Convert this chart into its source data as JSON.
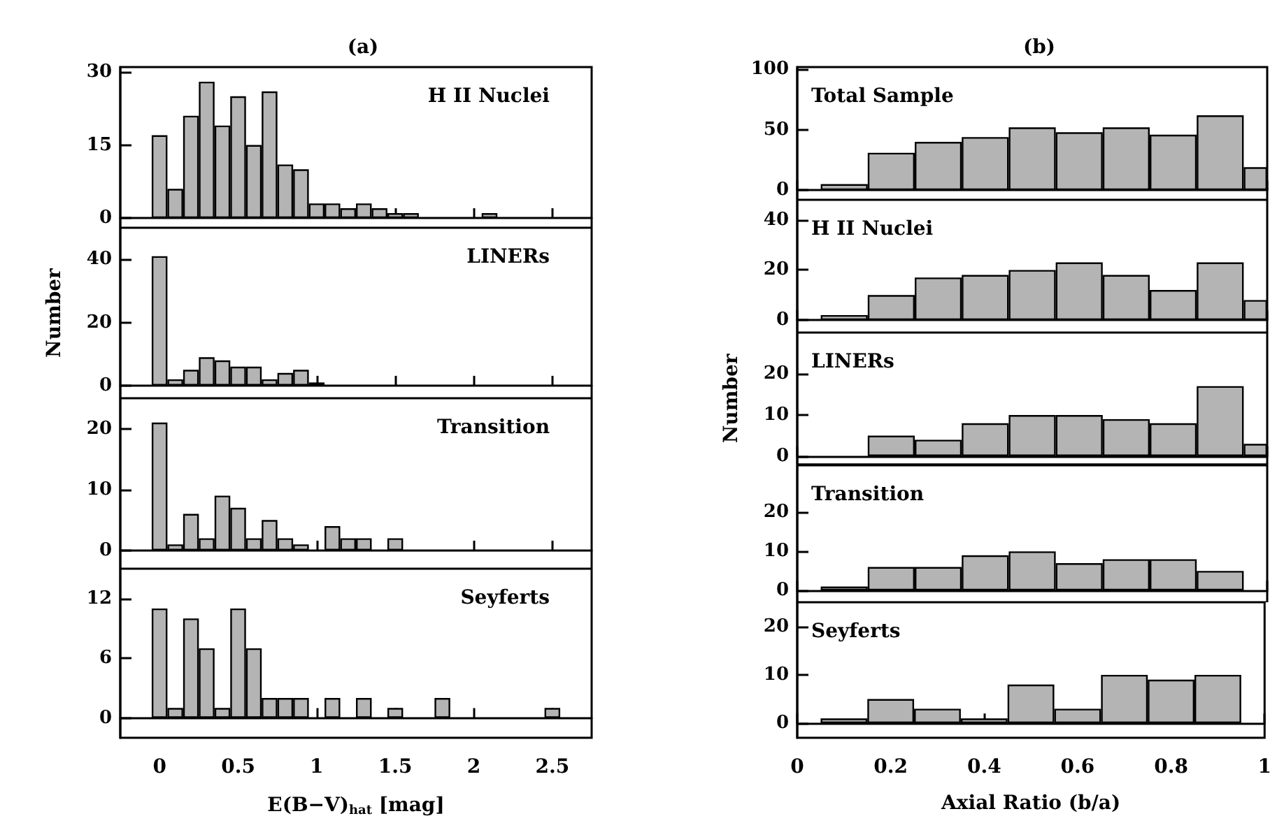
{
  "chart_data": [
    {
      "type": "histogram",
      "title": "(a)",
      "annotations": [
        "H II Nuclei"
      ],
      "bins": [
        -0.05,
        0.05,
        0.15,
        0.25,
        0.35,
        0.45,
        0.55,
        0.65,
        0.75,
        0.85,
        0.95,
        1.05,
        1.15,
        1.25,
        1.35,
        1.45,
        1.55,
        1.65,
        1.75,
        1.85,
        1.95,
        2.05,
        2.15,
        2.25,
        2.35,
        2.45,
        2.55
      ],
      "values": [
        17,
        6,
        21,
        28,
        19,
        25,
        15,
        26,
        11,
        10,
        3,
        3,
        2,
        3,
        2,
        1,
        1,
        0,
        0,
        0,
        0,
        1,
        0,
        0,
        0,
        0
      ],
      "color": "#b4b4b4",
      "xlim": [
        -0.25,
        2.75
      ],
      "xticks": [
        0,
        0.5,
        1,
        1.5,
        2,
        2.5
      ],
      "ylim": [
        -2,
        31
      ],
      "yticks": [
        0,
        15,
        30
      ],
      "tick_labels": "y"
    },
    {
      "type": "histogram",
      "ylabel": "Number",
      "annotations": [
        "LINERs"
      ],
      "bins": [
        -0.05,
        0.05,
        0.15,
        0.25,
        0.35,
        0.45,
        0.55,
        0.65,
        0.75,
        0.85,
        0.95,
        1.05,
        1.15,
        1.25,
        1.35,
        1.45,
        1.55,
        1.65,
        1.75,
        1.85,
        1.95,
        2.05,
        2.15,
        2.25,
        2.35,
        2.45,
        2.55
      ],
      "values": [
        41,
        2,
        5,
        9,
        8,
        6,
        6,
        2,
        4,
        5,
        1,
        0,
        0,
        0,
        0,
        0,
        0,
        0,
        0,
        0,
        0,
        0,
        0,
        0,
        0,
        0
      ],
      "color": "#b4b4b4",
      "xlim": [
        -0.25,
        2.75
      ],
      "xticks": [
        0,
        0.5,
        1,
        1.5,
        2,
        2.5
      ],
      "ylim": [
        -4,
        50
      ],
      "yticks": [
        0,
        20,
        40
      ],
      "tick_labels": "y"
    },
    {
      "type": "histogram",
      "annotations": [
        "Transition"
      ],
      "bins": [
        -0.05,
        0.05,
        0.15,
        0.25,
        0.35,
        0.45,
        0.55,
        0.65,
        0.75,
        0.85,
        0.95,
        1.05,
        1.15,
        1.25,
        1.35,
        1.45,
        1.55,
        1.65,
        1.75,
        1.85,
        1.95,
        2.05,
        2.15,
        2.25,
        2.35,
        2.45,
        2.55
      ],
      "values": [
        21,
        1,
        6,
        2,
        9,
        7,
        2,
        5,
        2,
        1,
        0,
        4,
        2,
        2,
        0,
        2,
        0,
        0,
        0,
        0,
        0,
        0,
        0,
        0,
        0,
        0
      ],
      "color": "#b4b4b4",
      "xlim": [
        -0.25,
        2.75
      ],
      "xticks": [
        0,
        0.5,
        1,
        1.5,
        2,
        2.5
      ],
      "ylim": [
        -3,
        25
      ],
      "yticks": [
        0,
        10,
        20
      ],
      "tick_labels": "y"
    },
    {
      "type": "histogram",
      "xlabel": "E(B−V)$_{hat}$ [mag]",
      "annotations": [
        "Seyferts"
      ],
      "bins": [
        -0.05,
        0.05,
        0.15,
        0.25,
        0.35,
        0.45,
        0.55,
        0.65,
        0.75,
        0.85,
        0.95,
        1.05,
        1.15,
        1.25,
        1.35,
        1.45,
        1.55,
        1.65,
        1.75,
        1.85,
        1.95,
        2.05,
        2.15,
        2.25,
        2.35,
        2.45,
        2.55
      ],
      "values": [
        11,
        1,
        10,
        7,
        1,
        11,
        7,
        2,
        2,
        2,
        0,
        2,
        0,
        2,
        0,
        1,
        0,
        0,
        2,
        0,
        0,
        0,
        0,
        0,
        0,
        1
      ],
      "color": "#b4b4b4",
      "xlim": [
        -0.25,
        2.75
      ],
      "xticks": [
        0,
        0.5,
        1,
        1.5,
        2,
        2.5
      ],
      "ylim": [
        -2,
        15
      ],
      "yticks": [
        0,
        6,
        12
      ]
    },
    {
      "type": "histogram",
      "title": "(b)",
      "annotations": [
        "Total Sample"
      ],
      "bins": [
        0.05,
        0.15,
        0.25,
        0.35,
        0.45,
        0.55,
        0.65,
        0.75,
        0.85,
        0.95,
        1.0
      ],
      "values": [
        5,
        31,
        40,
        44,
        52,
        48,
        52,
        46,
        62,
        19
      ],
      "color": "#b4b4b4",
      "xlim": [
        0,
        1
      ],
      "xticks": [
        0,
        0.2,
        0.4,
        0.6,
        0.8,
        1
      ],
      "ylim": [
        -8,
        102
      ],
      "yticks": [
        0,
        50,
        100
      ],
      "tick_labels": "y"
    },
    {
      "type": "histogram",
      "annotations": [
        "H II Nuclei"
      ],
      "bins": [
        0.05,
        0.15,
        0.25,
        0.35,
        0.45,
        0.55,
        0.65,
        0.75,
        0.85,
        0.95,
        1.0
      ],
      "values": [
        2,
        10,
        17,
        18,
        20,
        23,
        18,
        12,
        23,
        8
      ],
      "color": "#b4b4b4",
      "xlim": [
        0,
        1
      ],
      "xticks": [
        0,
        0.2,
        0.4,
        0.6,
        0.8,
        1
      ],
      "ylim": [
        -5,
        48
      ],
      "yticks": [
        0,
        20,
        40
      ],
      "tick_labels": "y"
    },
    {
      "type": "histogram",
      "ylabel": "Number",
      "annotations": [
        "LINERs"
      ],
      "bins": [
        0.15,
        0.25,
        0.35,
        0.45,
        0.55,
        0.65,
        0.75,
        0.85,
        0.95,
        1.0
      ],
      "values": [
        5,
        4,
        8,
        10,
        10,
        9,
        8,
        17,
        3
      ],
      "color": "#b4b4b4",
      "xlim": [
        0,
        1
      ],
      "xticks": [
        0,
        0.2,
        0.4,
        0.6,
        0.8,
        1
      ],
      "ylim": [
        -2,
        30
      ],
      "yticks": [
        0,
        10,
        20
      ],
      "tick_labels": "y"
    },
    {
      "type": "histogram",
      "annotations": [
        "Transition"
      ],
      "bins": [
        0.05,
        0.15,
        0.25,
        0.35,
        0.45,
        0.55,
        0.65,
        0.75,
        0.85,
        0.95
      ],
      "values": [
        1,
        6,
        6,
        9,
        10,
        7,
        8,
        8,
        5
      ],
      "color": "#b4b4b4",
      "xlim": [
        0,
        1
      ],
      "xticks": [
        0,
        0.2,
        0.4,
        0.6,
        0.8,
        1
      ],
      "ylim": [
        -3,
        32
      ],
      "yticks": [
        0,
        10,
        20
      ],
      "tick_labels": "y"
    },
    {
      "type": "histogram",
      "xlabel": "Axial Ratio (b/a)",
      "annotations": [
        "Seyferts"
      ],
      "bins": [
        0.05,
        0.15,
        0.25,
        0.35,
        0.45,
        0.55,
        0.65,
        0.75,
        0.85,
        0.95
      ],
      "values": [
        1,
        5,
        3,
        1,
        8,
        3,
        10,
        9,
        10
      ],
      "color": "#b4b4b4",
      "xlim": [
        0,
        1
      ],
      "xticks": [
        0,
        0.2,
        0.4,
        0.6,
        0.8,
        1
      ],
      "ylim": [
        -3,
        25
      ],
      "yticks": [
        0,
        10,
        20
      ]
    }
  ]
}
